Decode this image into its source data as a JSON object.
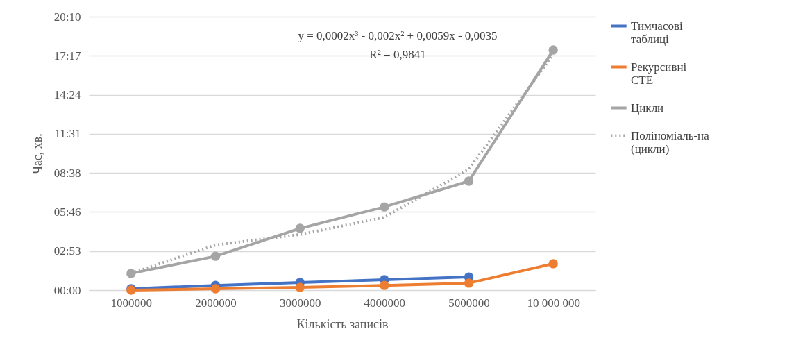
{
  "chart_data": {
    "type": "line",
    "xlabel": "Кількість записів",
    "ylabel": "Час, хв.",
    "categories": [
      "1000000",
      "2000000",
      "3000000",
      "4000000",
      "5000000",
      "10 000 000"
    ],
    "series": [
      {
        "name": "Тимчасові таблиці",
        "color": "#4472c4",
        "values": [
          6,
          21,
          34,
          46,
          58,
          null
        ]
      },
      {
        "name": "Рекурсивні СТЕ",
        "color": "#ed7d31",
        "values": [
          0,
          6,
          12,
          21,
          31,
          117
        ]
      },
      {
        "name": "Цикли",
        "color": "#a5a5a5",
        "values": [
          74,
          150,
          273,
          368,
          482,
          1062
        ]
      },
      {
        "name": "Поліноміаль-на (цикли)",
        "color": "#a5a5a5",
        "marker": "none",
        "line_style": "dotted",
        "values": [
          74,
          200,
          246,
          322,
          535,
          1041
        ]
      }
    ],
    "ylim": [
      0,
      1209.6
    ],
    "yticks": [
      {
        "value": 0,
        "label": "00:00"
      },
      {
        "value": 172.8,
        "label": "02:53"
      },
      {
        "value": 345.6,
        "label": "05:46"
      },
      {
        "value": 518.4,
        "label": "08:38"
      },
      {
        "value": 691.2,
        "label": "11:31"
      },
      {
        "value": 864,
        "label": "14:24"
      },
      {
        "value": 1036.8,
        "label": "17:17"
      },
      {
        "value": 1209.6,
        "label": "20:10"
      }
    ],
    "annotations": [
      "y = 0,0002x³ - 0,002x² + 0,0059x - 0,0035",
      "R² = 0,9841"
    ],
    "grid": "y",
    "legend": "right",
    "marker": "circle",
    "line_style": "solid"
  }
}
